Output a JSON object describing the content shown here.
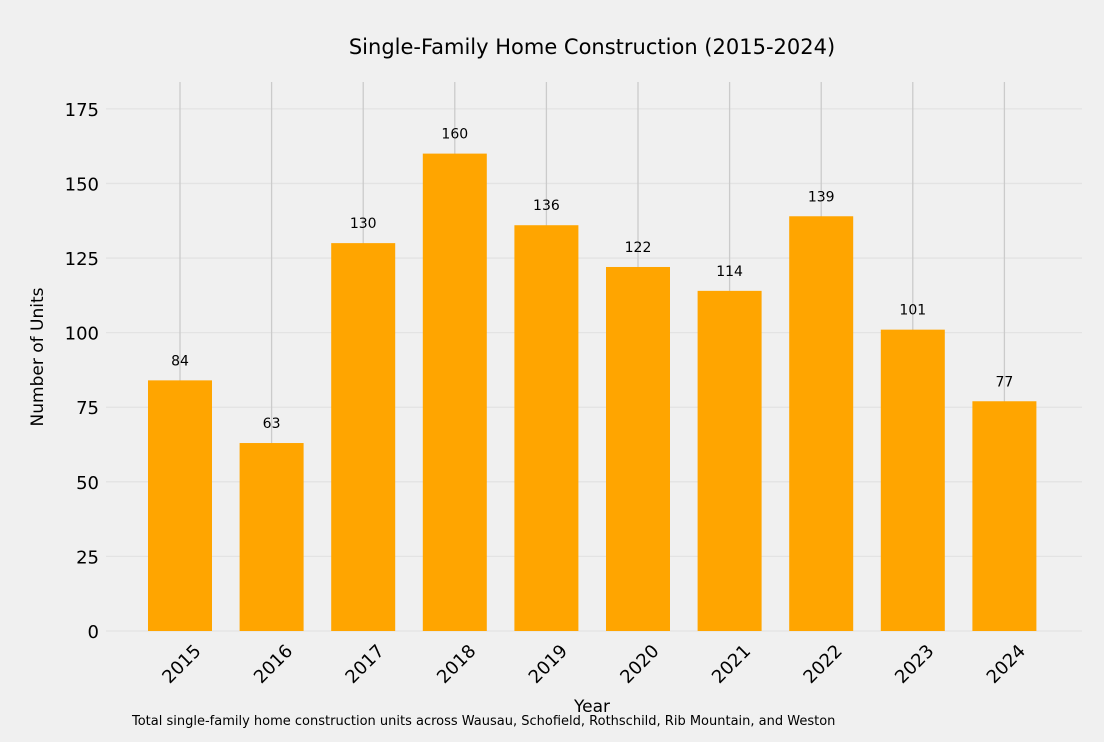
{
  "chart_data": {
    "type": "bar",
    "title": "Single-Family Home Construction (2015-2024)",
    "xlabel": "Year",
    "ylabel": "Number of Units",
    "categories": [
      "2015",
      "2016",
      "2017",
      "2018",
      "2019",
      "2020",
      "2021",
      "2022",
      "2023",
      "2024"
    ],
    "values": [
      84,
      63,
      130,
      160,
      136,
      122,
      114,
      139,
      101,
      77
    ],
    "data_labels": [
      "84",
      "63",
      "130",
      "160",
      "136",
      "122",
      "114",
      "139",
      "101",
      "77"
    ],
    "ylim": [
      0,
      184
    ],
    "y_ticks": [
      0,
      25,
      50,
      75,
      100,
      125,
      150,
      175
    ],
    "y_tick_labels": [
      "0",
      "25",
      "50",
      "75",
      "100",
      "125",
      "150",
      "175"
    ],
    "bar_color": "#ffa500",
    "background_color": "#f0f0f0",
    "grid": true
  },
  "caption": "Total single-family home construction units across Wausau, Schofield, Rothschild, Rib Mountain, and Weston"
}
